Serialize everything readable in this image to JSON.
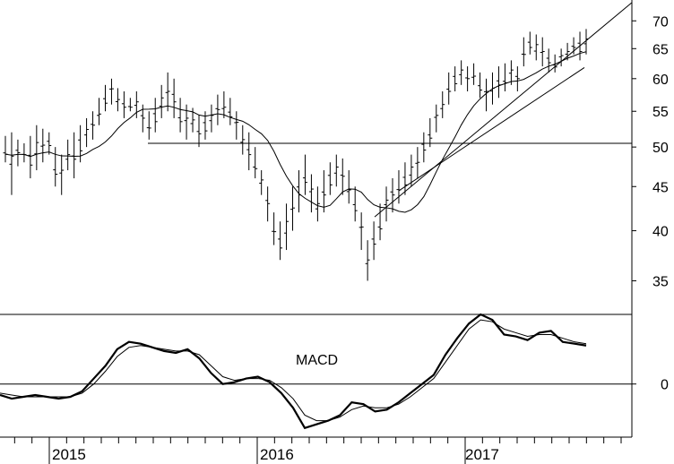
{
  "chart_data": [
    {
      "type": "ohlc",
      "panel": "price",
      "y_scale": "log",
      "ylim": [
        32,
        74
      ],
      "y_ticks": [
        35,
        40,
        45,
        50,
        55,
        60,
        65,
        70
      ],
      "x_year_labels": [
        "2015",
        "2016",
        "2017"
      ],
      "series": [
        {
          "name": "",
          "kind": "ohlc",
          "bars": [
            [
              48,
              51.5
            ],
            [
              44,
              52
            ],
            [
              47.5,
              51
            ],
            [
              48,
              50.5
            ],
            [
              46,
              51.5
            ],
            [
              47,
              53
            ],
            [
              48,
              52.5
            ],
            [
              49,
              52
            ],
            [
              45,
              50
            ],
            [
              44,
              49
            ],
            [
              47,
              51
            ],
            [
              46,
              52
            ],
            [
              48,
              53
            ],
            [
              50,
              54
            ],
            [
              51,
              55
            ],
            [
              53,
              57
            ],
            [
              55,
              59
            ],
            [
              56,
              60
            ],
            [
              55,
              58.5
            ],
            [
              54,
              58
            ],
            [
              55,
              57
            ],
            [
              54,
              58
            ],
            [
              52,
              56
            ],
            [
              51,
              55
            ],
            [
              52,
              57
            ],
            [
              54,
              59
            ],
            [
              55,
              61
            ],
            [
              54,
              60
            ],
            [
              52,
              57
            ],
            [
              51,
              56
            ],
            [
              52,
              55.5
            ],
            [
              50,
              54.5
            ],
            [
              51,
              55
            ],
            [
              52,
              56
            ],
            [
              53,
              57.5
            ],
            [
              54,
              58
            ],
            [
              53,
              57
            ],
            [
              51,
              55
            ],
            [
              49,
              53
            ],
            [
              47,
              52
            ],
            [
              46,
              50
            ],
            [
              44,
              47
            ],
            [
              41,
              45
            ],
            [
              38.5,
              42
            ],
            [
              37,
              41
            ],
            [
              38,
              43
            ],
            [
              40,
              45
            ],
            [
              42,
              47
            ],
            [
              44,
              49
            ],
            [
              42,
              46.5
            ],
            [
              41,
              45
            ],
            [
              42,
              47
            ],
            [
              44,
              48
            ],
            [
              45,
              49
            ],
            [
              44,
              48.5
            ],
            [
              43,
              47
            ],
            [
              41,
              45
            ],
            [
              38,
              42
            ],
            [
              35,
              39
            ],
            [
              37,
              41
            ],
            [
              39,
              43
            ],
            [
              41,
              45
            ],
            [
              42,
              46
            ],
            [
              43,
              47
            ],
            [
              44,
              48
            ],
            [
              45,
              49
            ],
            [
              46,
              50
            ],
            [
              48,
              52
            ],
            [
              50,
              54
            ],
            [
              52,
              56
            ],
            [
              54,
              58
            ],
            [
              56,
              61
            ],
            [
              58,
              62
            ],
            [
              59,
              63
            ],
            [
              58,
              62
            ],
            [
              59,
              62.5
            ],
            [
              57,
              61
            ],
            [
              55,
              60
            ],
            [
              56,
              61
            ],
            [
              57,
              62
            ],
            [
              58,
              62.5
            ],
            [
              59,
              63
            ],
            [
              58,
              62
            ],
            [
              62,
              67
            ],
            [
              64,
              68
            ],
            [
              63,
              67.5
            ],
            [
              62,
              67
            ],
            [
              61,
              65
            ],
            [
              61,
              64
            ],
            [
              62,
              65
            ],
            [
              63,
              66
            ],
            [
              64,
              67
            ],
            [
              63,
              68
            ],
            [
              64,
              68.5
            ]
          ]
        },
        {
          "name": "",
          "kind": "moving-average"
        },
        {
          "name": "",
          "kind": "trendline"
        },
        {
          "name": "",
          "kind": "trendline"
        },
        {
          "name": "",
          "kind": "horizontal-line"
        }
      ]
    },
    {
      "type": "line",
      "panel": "indicator",
      "title": "MACD",
      "y_ticks": [
        0
      ],
      "ylim": [
        -2.9,
        3.8
      ],
      "series": [
        {
          "name": "",
          "kind": "macd",
          "values": [
            -0.6,
            -0.8,
            -0.7,
            -0.6,
            -0.7,
            -0.8,
            -0.7,
            -0.4,
            0.3,
            1.0,
            1.9,
            2.3,
            2.2,
            2.0,
            1.8,
            1.7,
            1.9,
            1.4,
            0.6,
            0.0,
            0.1,
            0.3,
            0.4,
            0.1,
            -0.5,
            -1.3,
            -2.4,
            -2.2,
            -2.0,
            -1.7,
            -1.0,
            -1.1,
            -1.5,
            -1.4,
            -1.0,
            -0.5,
            0.0,
            0.5,
            1.6,
            2.5,
            3.3,
            3.8,
            3.5,
            2.7,
            2.6,
            2.4,
            2.8,
            2.9,
            2.3,
            2.2,
            2.1
          ]
        },
        {
          "name": "",
          "kind": "signal",
          "values": [
            -0.5,
            -0.6,
            -0.7,
            -0.7,
            -0.7,
            -0.7,
            -0.7,
            -0.5,
            0.0,
            0.7,
            1.5,
            2.0,
            2.1,
            2.0,
            1.9,
            1.8,
            1.8,
            1.6,
            1.0,
            0.4,
            0.2,
            0.3,
            0.3,
            0.2,
            -0.2,
            -0.8,
            -1.7,
            -2.0,
            -2.0,
            -1.8,
            -1.4,
            -1.2,
            -1.3,
            -1.3,
            -1.1,
            -0.7,
            -0.2,
            0.3,
            1.2,
            2.1,
            3.0,
            3.5,
            3.4,
            3.0,
            2.8,
            2.6,
            2.7,
            2.7,
            2.5,
            2.3,
            2.2
          ]
        }
      ]
    }
  ]
}
